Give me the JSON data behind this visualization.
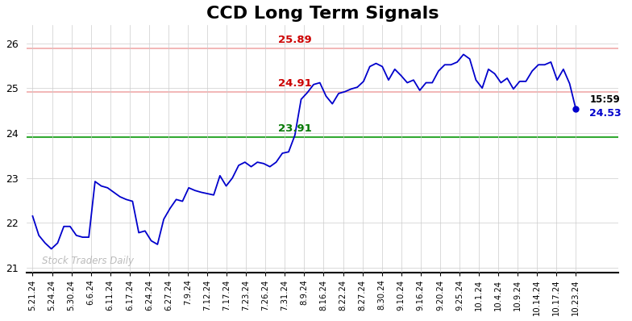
{
  "title": "CCD Long Term Signals",
  "title_fontsize": 16,
  "line_color": "#0000cc",
  "background_color": "#ffffff",
  "grid_color": "#cccccc",
  "hline_red_upper": 25.89,
  "hline_red_lower": 24.91,
  "hline_green": 23.91,
  "hline_red_color": "#f0aaaa",
  "hline_green_color": "#33aa33",
  "label_red_upper": "25.89",
  "label_red_lower": "24.91",
  "label_green": "23.91",
  "label_red_color": "#cc0000",
  "label_green_color": "#007700",
  "last_label": "15:59",
  "last_value": "24.53",
  "last_dot_value": 24.53,
  "watermark": "Stock Traders Daily",
  "watermark_color": "#bbbbbb",
  "ylim": [
    20.9,
    26.4
  ],
  "yticks": [
    21,
    22,
    23,
    24,
    25,
    26
  ],
  "x_labels": [
    "5.21.24",
    "5.24.24",
    "5.30.24",
    "6.6.24",
    "6.11.24",
    "6.17.24",
    "6.24.24",
    "6.27.24",
    "7.9.24",
    "7.12.24",
    "7.17.24",
    "7.23.24",
    "7.26.24",
    "7.31.24",
    "8.9.24",
    "8.16.24",
    "8.22.24",
    "8.27.24",
    "8.30.24",
    "9.10.24",
    "9.16.24",
    "9.20.24",
    "9.25.24",
    "10.1.24",
    "10.4.24",
    "10.9.24",
    "10.14.24",
    "10.17.24",
    "10.23.24"
  ],
  "y_values": [
    22.15,
    21.72,
    21.55,
    21.42,
    21.55,
    21.92,
    21.92,
    21.72,
    21.68,
    21.68,
    22.92,
    22.82,
    22.78,
    22.68,
    22.58,
    22.52,
    22.48,
    21.78,
    21.82,
    21.6,
    21.52,
    22.08,
    22.32,
    22.52,
    22.48,
    22.78,
    22.72,
    22.68,
    22.65,
    22.62,
    23.05,
    22.82,
    23.0,
    23.28,
    23.35,
    23.25,
    23.35,
    23.32,
    23.25,
    23.35,
    23.55,
    23.58,
    23.95,
    24.75,
    24.9,
    25.08,
    25.12,
    24.82,
    24.65,
    24.88,
    24.92,
    24.98,
    25.02,
    25.15,
    25.48,
    25.55,
    25.48,
    25.18,
    25.42,
    25.28,
    25.12,
    25.18,
    24.95,
    25.12,
    25.12,
    25.38,
    25.52,
    25.52,
    25.58,
    25.75,
    25.65,
    25.18,
    25.0,
    25.42,
    25.32,
    25.12,
    25.22,
    24.98,
    25.15,
    25.15,
    25.38,
    25.52,
    25.52,
    25.58,
    25.18,
    25.42,
    25.1,
    24.53
  ]
}
